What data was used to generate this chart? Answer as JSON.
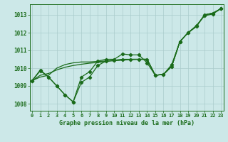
{
  "title": "Graphe pression niveau de la mer (hPa)",
  "background_color": "#cce8e8",
  "grid_color": "#aacccc",
  "line_color": "#1a6b1a",
  "x_labels": [
    "0",
    "1",
    "2",
    "3",
    "4",
    "5",
    "6",
    "7",
    "8",
    "9",
    "10",
    "11",
    "12",
    "13",
    "14",
    "15",
    "16",
    "17",
    "18",
    "19",
    "20",
    "21",
    "22",
    "23"
  ],
  "y_ticks": [
    1008,
    1009,
    1010,
    1011,
    1012,
    1013
  ],
  "ylim": [
    1007.6,
    1013.6
  ],
  "xlim": [
    -0.3,
    23.3
  ],
  "series": [
    {
      "values": [
        1009.3,
        1009.9,
        1009.5,
        1009.0,
        1008.5,
        1008.1,
        1009.5,
        1009.8,
        1010.4,
        1010.5,
        1010.5,
        1010.8,
        1010.75,
        1010.75,
        1010.3,
        1009.6,
        1009.65,
        1010.2,
        1011.5,
        1012.0,
        1012.4,
        1012.95,
        1013.05,
        1013.35
      ],
      "markers": true
    },
    {
      "values": [
        1009.3,
        1009.85,
        1009.5,
        1009.0,
        1008.5,
        1008.1,
        1009.2,
        1009.5,
        1010.15,
        1010.4,
        1010.45,
        1010.5,
        1010.5,
        1010.5,
        1010.5,
        1009.6,
        1009.65,
        1010.1,
        1011.5,
        1012.0,
        1012.35,
        1013.0,
        1013.1,
        1013.35
      ],
      "markers": true
    },
    {
      "values": [
        1009.3,
        1009.5,
        1009.6,
        1010.0,
        1010.2,
        1010.3,
        1010.35,
        1010.35,
        1010.38,
        1010.4,
        1010.44,
        1010.47,
        1010.5,
        1010.5,
        1010.5,
        1009.6,
        1009.65,
        1010.1,
        1011.5,
        1012.0,
        1012.35,
        1013.0,
        1013.1,
        1013.35
      ],
      "markers": false
    },
    {
      "values": [
        1009.3,
        1009.6,
        1009.7,
        1009.9,
        1010.05,
        1010.15,
        1010.22,
        1010.28,
        1010.32,
        1010.38,
        1010.42,
        1010.45,
        1010.48,
        1010.5,
        1010.5,
        1009.6,
        1009.65,
        1010.1,
        1011.5,
        1012.0,
        1012.35,
        1013.0,
        1013.1,
        1013.35
      ],
      "markers": false
    }
  ]
}
